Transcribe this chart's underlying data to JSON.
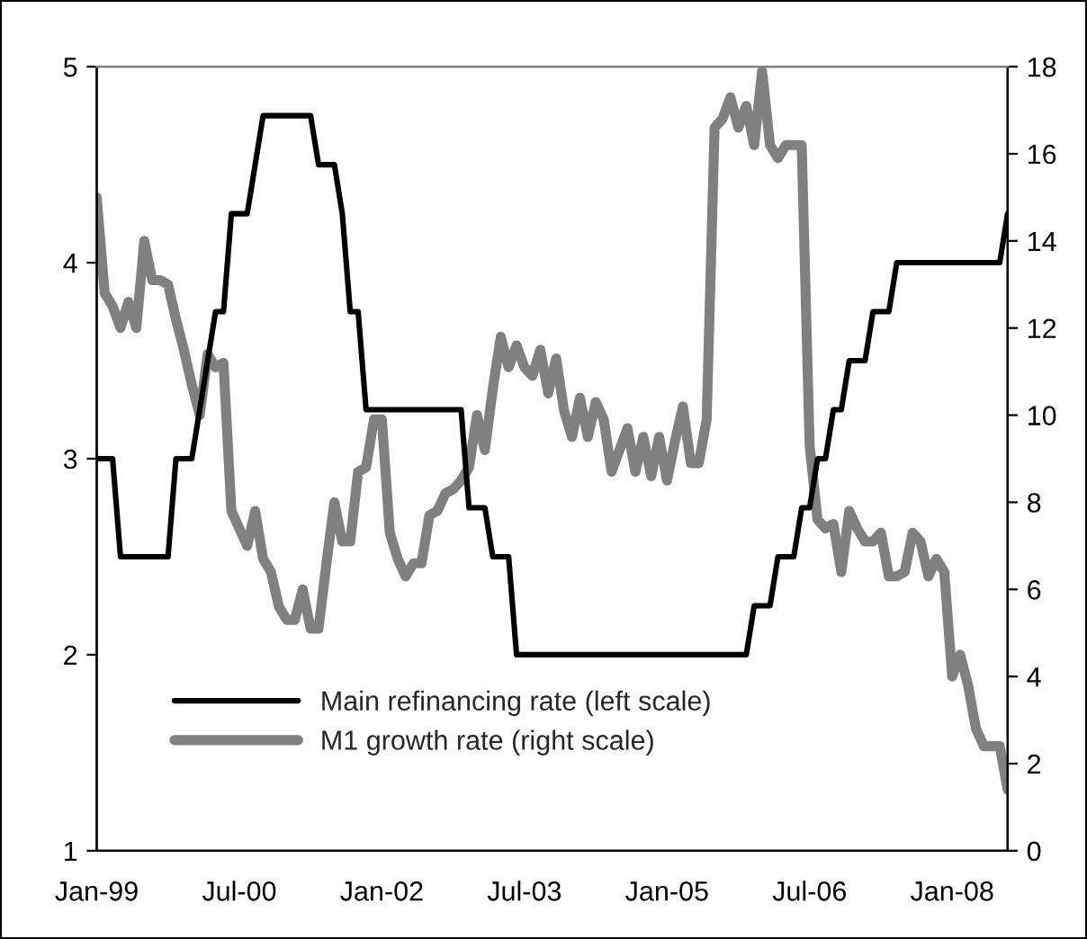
{
  "chart_data": {
    "type": "line",
    "categories": [
      "Jan-99",
      null,
      null,
      null,
      null,
      null,
      null,
      null,
      null,
      null,
      null,
      null,
      null,
      null,
      null,
      null,
      null,
      null,
      "Jul-00",
      null,
      null,
      null,
      null,
      null,
      null,
      null,
      null,
      null,
      null,
      null,
      null,
      null,
      null,
      null,
      null,
      null,
      "Jan-02",
      null,
      null,
      null,
      null,
      null,
      null,
      null,
      null,
      null,
      null,
      null,
      null,
      null,
      null,
      null,
      null,
      null,
      "Jul-03",
      null,
      null,
      null,
      null,
      null,
      null,
      null,
      null,
      null,
      null,
      null,
      null,
      null,
      null,
      null,
      null,
      null,
      "Jan-05",
      null,
      null,
      null,
      null,
      null,
      null,
      null,
      null,
      null,
      null,
      null,
      null,
      null,
      null,
      null,
      null,
      null,
      "Jul-06",
      null,
      null,
      null,
      null,
      null,
      null,
      null,
      null,
      null,
      null,
      null,
      null,
      null,
      null,
      null,
      null,
      null,
      "Jan-08",
      null,
      null,
      null,
      null,
      null,
      null,
      null
    ],
    "series": [
      {
        "name": "Main refinancing rate (left scale)",
        "color": "#000000",
        "values": [
          3.0,
          3.0,
          3.0,
          2.5,
          2.5,
          2.5,
          2.5,
          2.5,
          2.5,
          2.5,
          3.0,
          3.0,
          3.0,
          3.25,
          3.5,
          3.75,
          3.75,
          4.25,
          4.25,
          4.25,
          4.5,
          4.75,
          4.75,
          4.75,
          4.75,
          4.75,
          4.75,
          4.75,
          4.5,
          4.5,
          4.5,
          4.25,
          3.75,
          3.75,
          3.25,
          3.25,
          3.25,
          3.25,
          3.25,
          3.25,
          3.25,
          3.25,
          3.25,
          3.25,
          3.25,
          3.25,
          3.25,
          2.75,
          2.75,
          2.75,
          2.5,
          2.5,
          2.5,
          2.0,
          2.0,
          2.0,
          2.0,
          2.0,
          2.0,
          2.0,
          2.0,
          2.0,
          2.0,
          2.0,
          2.0,
          2.0,
          2.0,
          2.0,
          2.0,
          2.0,
          2.0,
          2.0,
          2.0,
          2.0,
          2.0,
          2.0,
          2.0,
          2.0,
          2.0,
          2.0,
          2.0,
          2.0,
          2.0,
          2.25,
          2.25,
          2.25,
          2.5,
          2.5,
          2.5,
          2.75,
          2.75,
          3.0,
          3.0,
          3.25,
          3.25,
          3.5,
          3.5,
          3.5,
          3.75,
          3.75,
          3.75,
          4.0,
          4.0,
          4.0,
          4.0,
          4.0,
          4.0,
          4.0,
          4.0,
          4.0,
          4.0,
          4.0,
          4.0,
          4.0,
          4.0,
          4.25
        ]
      },
      {
        "name": "M1 growth rate (right scale)",
        "color": "#808080",
        "axis": "y2",
        "values": [
          15.0,
          12.8,
          12.5,
          12.0,
          12.6,
          12.0,
          14.0,
          13.1,
          13.1,
          13.0,
          12.2,
          11.5,
          10.7,
          10.0,
          11.4,
          11.1,
          11.2,
          7.8,
          7.4,
          7.0,
          7.8,
          6.7,
          6.4,
          5.6,
          5.3,
          5.3,
          6.0,
          5.1,
          5.1,
          6.6,
          8.0,
          7.1,
          7.1,
          8.7,
          8.8,
          9.9,
          9.9,
          7.3,
          6.7,
          6.3,
          6.6,
          6.6,
          7.7,
          7.8,
          8.2,
          8.3,
          8.5,
          8.8,
          10.0,
          9.2,
          10.6,
          11.8,
          11.1,
          11.6,
          11.1,
          10.9,
          11.5,
          10.5,
          11.3,
          10.1,
          9.5,
          10.4,
          9.5,
          10.3,
          9.9,
          8.7,
          9.2,
          9.7,
          8.7,
          9.5,
          8.6,
          9.5,
          8.5,
          9.4,
          10.2,
          8.9,
          8.9,
          9.9,
          16.6,
          16.8,
          17.3,
          16.6,
          17.1,
          16.2,
          17.9,
          16.2,
          15.9,
          16.2,
          16.2,
          16.2,
          9.3,
          7.6,
          7.4,
          7.5,
          6.4,
          7.8,
          7.4,
          7.1,
          7.1,
          7.3,
          6.3,
          6.3,
          6.4,
          7.3,
          7.1,
          6.3,
          6.7,
          6.4,
          4.0,
          4.5,
          3.8,
          2.8,
          2.4,
          2.4,
          2.4,
          1.4
        ]
      }
    ],
    "ylim": [
      1,
      5
    ],
    "yticks": [
      1,
      2,
      3,
      4,
      5
    ],
    "y2lim": [
      0,
      18
    ],
    "y2ticks": [
      0,
      2,
      4,
      6,
      8,
      10,
      12,
      14,
      16,
      18
    ],
    "legend": "bottom",
    "grid": false,
    "line_style": "solid",
    "marker": "none"
  }
}
